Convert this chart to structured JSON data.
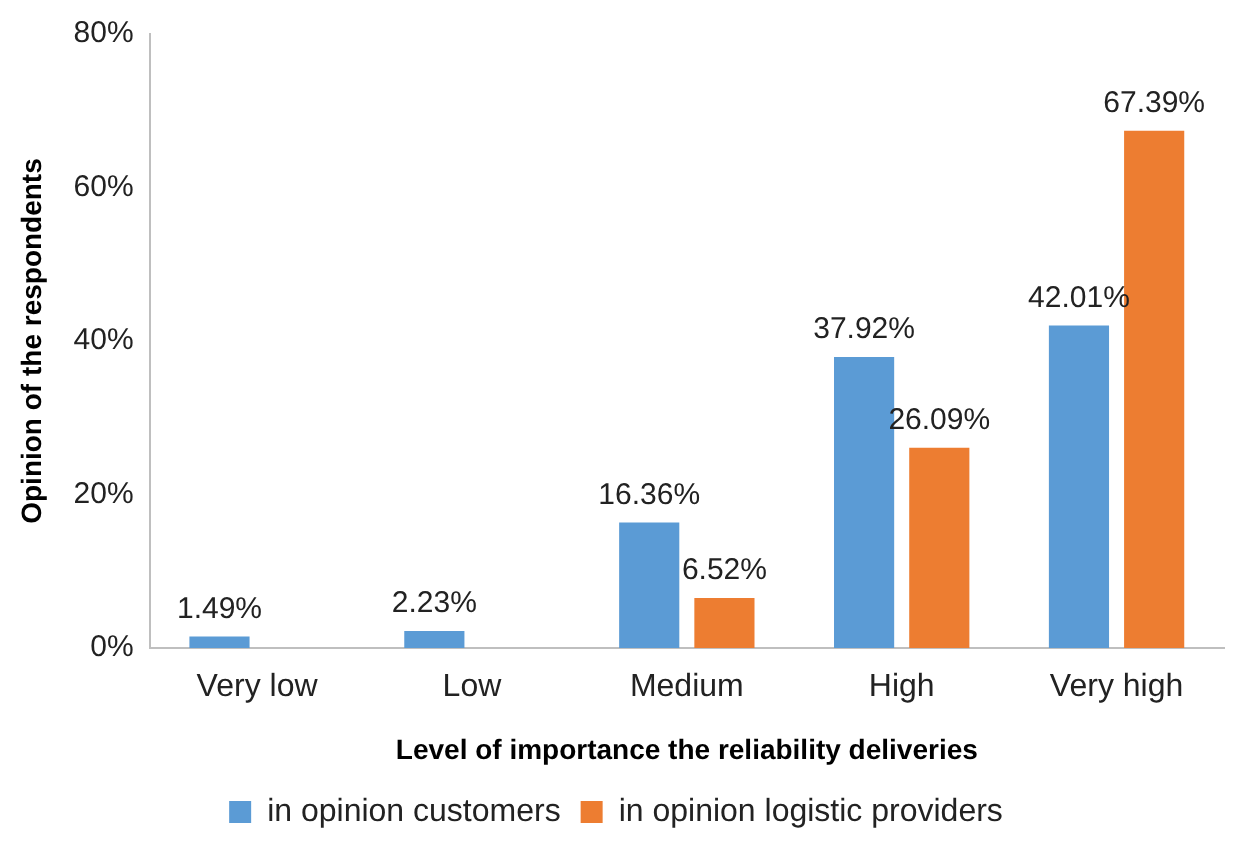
{
  "chart_data": {
    "type": "bar",
    "xlabel": "Level of importance the reliability deliveries",
    "ylabel": "Opinion of the respondents",
    "categories": [
      "Very low",
      "Low",
      "Medium",
      "High",
      "Very high"
    ],
    "series": [
      {
        "name": "in opinion customers",
        "color": "#5b9bd5",
        "values": [
          1.49,
          2.23,
          16.36,
          37.92,
          42.01
        ],
        "value_labels": [
          "1.49%",
          "2.23%",
          "16.36%",
          "37.92%",
          "42.01%"
        ]
      },
      {
        "name": "in opinion logistic providers",
        "color": "#ed7d31",
        "values": [
          null,
          null,
          6.52,
          26.09,
          67.39
        ],
        "value_labels": [
          null,
          null,
          "6.52%",
          "26.09%",
          "67.39%"
        ]
      }
    ],
    "ylim": [
      0,
      80
    ],
    "yticks": [
      {
        "value": 0,
        "label": "0%"
      },
      {
        "value": 20,
        "label": "20%"
      },
      {
        "value": 40,
        "label": "40%"
      },
      {
        "value": 60,
        "label": "60%"
      },
      {
        "value": 80,
        "label": "80%"
      }
    ],
    "grid": false,
    "legend": "bottom"
  }
}
